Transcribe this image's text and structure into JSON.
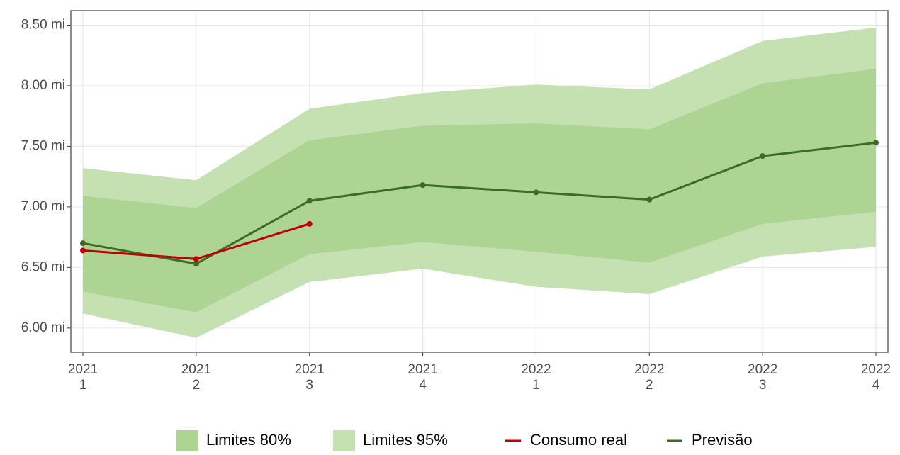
{
  "chart_data": {
    "type": "line",
    "categories": [
      [
        "2021",
        "1"
      ],
      [
        "2021",
        "2"
      ],
      [
        "2021",
        "3"
      ],
      [
        "2021",
        "4"
      ],
      [
        "2022",
        "1"
      ],
      [
        "2022",
        "2"
      ],
      [
        "2022",
        "3"
      ],
      [
        "2022",
        "4"
      ]
    ],
    "ylim": [
      5.8,
      8.62
    ],
    "yticks": [
      {
        "value": 6,
        "label": "6.00 mi"
      },
      {
        "value": 6.5,
        "label": "6.50 mi"
      },
      {
        "value": 7,
        "label": "7.00 mi"
      },
      {
        "value": 7.5,
        "label": "7.50 mi"
      },
      {
        "value": 8,
        "label": "8.00 mi"
      },
      {
        "value": 8.5,
        "label": "8.50 mi"
      }
    ],
    "grid": true,
    "legend": "bottom",
    "series": [
      {
        "name": "Limites 80%",
        "type": "band",
        "color": "#aed494",
        "lower": [
          6.3,
          6.13,
          6.61,
          6.71,
          6.63,
          6.54,
          6.86,
          6.96
        ],
        "upper": [
          7.09,
          6.99,
          7.55,
          7.67,
          7.69,
          7.64,
          8.02,
          8.14
        ]
      },
      {
        "name": "Limites 95%",
        "type": "band",
        "color": "#c5e0b1",
        "lower": [
          6.12,
          5.92,
          6.38,
          6.49,
          6.34,
          6.28,
          6.59,
          6.67
        ],
        "upper": [
          7.32,
          7.22,
          7.81,
          7.94,
          8.01,
          7.97,
          8.37,
          8.48
        ]
      },
      {
        "name": "Consumo real",
        "type": "line",
        "color": "#c00000",
        "values": [
          6.64,
          6.57,
          6.86,
          null,
          null,
          null,
          null,
          null
        ]
      },
      {
        "name": "Previsão",
        "type": "line",
        "color": "#3b6a2a",
        "values": [
          6.7,
          6.53,
          7.05,
          7.18,
          7.12,
          7.06,
          7.42,
          7.53
        ]
      }
    ]
  }
}
